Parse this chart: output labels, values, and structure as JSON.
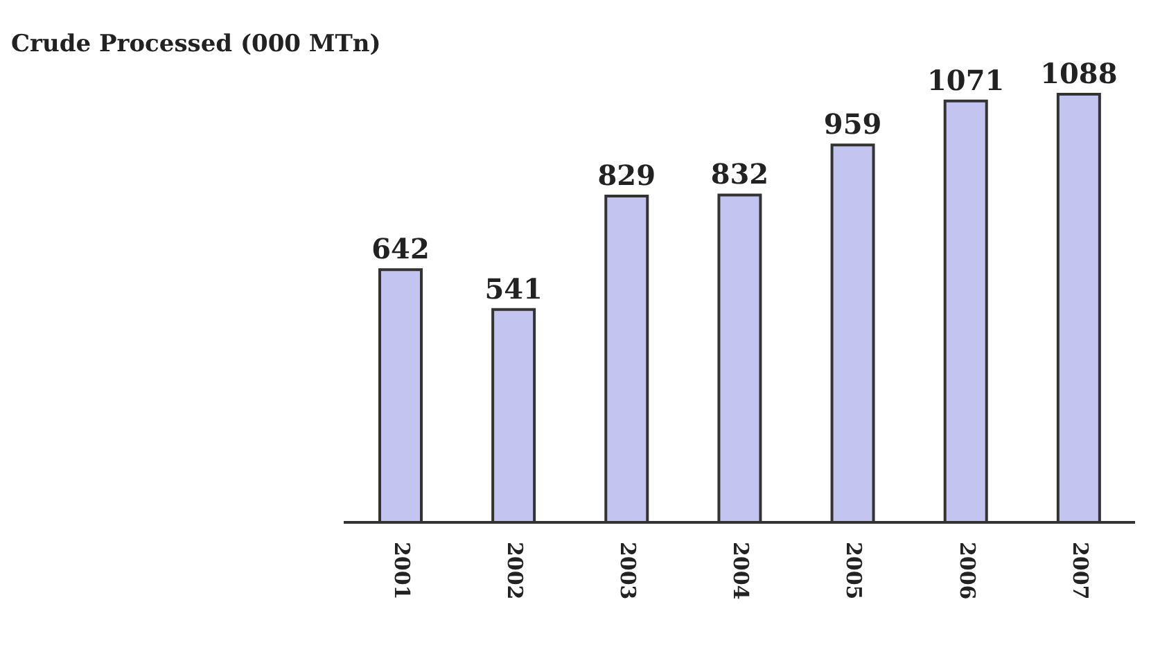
{
  "chart_data": {
    "type": "bar",
    "title": "Crude Processed (000 MTn)",
    "categories": [
      "2001",
      "2002",
      "2003",
      "2004",
      "2005",
      "2006",
      "2007"
    ],
    "values": [
      642,
      541,
      829,
      832,
      959,
      1071,
      1088
    ],
    "color": "#c4c4f0",
    "data_labels": true
  }
}
